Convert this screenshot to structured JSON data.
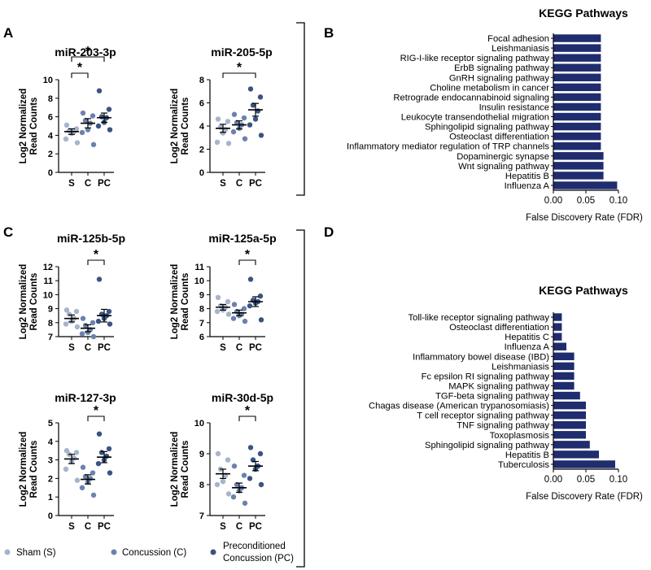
{
  "panel_labels": {
    "A": "A",
    "B": "B",
    "C": "C",
    "D": "D"
  },
  "colors": {
    "sham": "#a6b4cc",
    "concussion": "#6b82ad",
    "pc": "#3a5382",
    "bar": "#1f2d6e",
    "axis": "#000000"
  },
  "legend": {
    "items": [
      {
        "label": "Sham (S)",
        "color": "#a6b4cc"
      },
      {
        "label": "Concussion (C)",
        "color": "#6b82ad"
      },
      {
        "label": "Preconditioned",
        "label2": "Concussion (PC)",
        "color": "#3a5382"
      }
    ]
  },
  "chart_data": [
    {
      "type": "scatter",
      "id": "mir203",
      "title": "miR-203-3p",
      "ylabel": [
        "Log2 Normalized",
        "Read Counts"
      ],
      "categories": [
        "S",
        "C",
        "PC"
      ],
      "ylim": [
        0,
        10
      ],
      "yticks": [
        0,
        2,
        4,
        6,
        8,
        10
      ],
      "groups": [
        {
          "name": "S",
          "mean": 4.4,
          "sem": 0.3,
          "points": [
            5.1,
            4.7,
            4.5,
            4.4,
            4.2,
            3.6,
            3.2
          ]
        },
        {
          "name": "C",
          "mean": 5.3,
          "sem": 0.5,
          "points": [
            6.4,
            6.1,
            5.6,
            5.3,
            4.6,
            4.3,
            3.0
          ]
        },
        {
          "name": "PC",
          "mean": 5.9,
          "sem": 0.5,
          "points": [
            8.8,
            6.8,
            6.0,
            5.9,
            5.4,
            5.0,
            4.6
          ]
        }
      ],
      "significance": [
        {
          "from": "S",
          "to": "C",
          "label": "*",
          "level": 1
        },
        {
          "from": "S",
          "to": "PC",
          "label": "*",
          "level": 2
        }
      ]
    },
    {
      "type": "scatter",
      "id": "mir205",
      "title": "miR-205-5p",
      "ylabel": [
        "Log2 Normalized",
        "Read Counts"
      ],
      "categories": [
        "S",
        "C",
        "PC"
      ],
      "ylim": [
        0,
        8
      ],
      "yticks": [
        0,
        2,
        4,
        6,
        8
      ],
      "groups": [
        {
          "name": "S",
          "mean": 3.8,
          "sem": 0.35,
          "points": [
            4.6,
            4.4,
            3.9,
            3.7,
            3.4,
            2.6,
            2.5
          ]
        },
        {
          "name": "C",
          "mean": 4.1,
          "sem": 0.35,
          "points": [
            5.0,
            4.7,
            4.3,
            4.1,
            3.8,
            3.5,
            2.9
          ]
        },
        {
          "name": "PC",
          "mean": 5.4,
          "sem": 0.55,
          "points": [
            7.2,
            6.5,
            5.8,
            5.3,
            4.6,
            4.1,
            3.2
          ]
        }
      ],
      "significance": [
        {
          "from": "S",
          "to": "PC",
          "label": "*",
          "level": 1
        }
      ]
    },
    {
      "type": "scatter",
      "id": "mir125b",
      "title": "miR-125b-5p",
      "ylabel": [
        "Log2 Normalized",
        "Read Counts"
      ],
      "categories": [
        "S",
        "C",
        "PC"
      ],
      "ylim": [
        7,
        12
      ],
      "yticks": [
        7,
        8,
        9,
        10,
        11,
        12
      ],
      "groups": [
        {
          "name": "S",
          "mean": 8.3,
          "sem": 0.25,
          "points": [
            8.9,
            8.8,
            8.6,
            8.3,
            8.1,
            7.9,
            7.7
          ]
        },
        {
          "name": "C",
          "mean": 7.6,
          "sem": 0.25,
          "points": [
            8.3,
            8.0,
            7.8,
            7.5,
            7.3,
            7.2,
            7.0
          ]
        },
        {
          "name": "PC",
          "mean": 8.5,
          "sem": 0.45,
          "points": [
            11.1,
            8.8,
            8.6,
            8.5,
            8.3,
            8.1,
            7.9
          ]
        }
      ],
      "significance": [
        {
          "from": "C",
          "to": "PC",
          "label": "*",
          "level": 1
        }
      ]
    },
    {
      "type": "scatter",
      "id": "mir125a",
      "title": "miR-125a-5p",
      "ylabel": [
        "Log2 Normalized",
        "Read Counts"
      ],
      "categories": [
        "S",
        "C",
        "PC"
      ],
      "ylim": [
        6,
        11
      ],
      "yticks": [
        6,
        7,
        8,
        9,
        10,
        11
      ],
      "groups": [
        {
          "name": "S",
          "mean": 8.1,
          "sem": 0.2,
          "points": [
            8.8,
            8.5,
            8.2,
            8.1,
            7.9,
            7.8,
            7.6
          ]
        },
        {
          "name": "C",
          "mean": 7.7,
          "sem": 0.2,
          "points": [
            8.3,
            8.0,
            7.8,
            7.6,
            7.5,
            7.3,
            7.1
          ]
        },
        {
          "name": "PC",
          "mean": 8.5,
          "sem": 0.35,
          "points": [
            10.1,
            8.9,
            8.6,
            8.5,
            8.4,
            8.2,
            7.2
          ]
        }
      ],
      "significance": [
        {
          "from": "C",
          "to": "PC",
          "label": "*",
          "level": 1
        }
      ]
    },
    {
      "type": "scatter",
      "id": "mir127",
      "title": "miR-127-3p",
      "ylabel": [
        "Log2 Normalized",
        "Read Counts"
      ],
      "categories": [
        "S",
        "C",
        "PC"
      ],
      "ylim": [
        0,
        5
      ],
      "yticks": [
        0,
        1,
        2,
        3,
        4,
        5
      ],
      "groups": [
        {
          "name": "S",
          "mean": 3.05,
          "sem": 0.25,
          "points": [
            3.5,
            3.4,
            3.3,
            3.1,
            2.9,
            2.5,
            1.9
          ]
        },
        {
          "name": "C",
          "mean": 1.95,
          "sem": 0.25,
          "points": [
            2.6,
            2.3,
            2.1,
            2.0,
            1.8,
            1.5,
            1.1
          ]
        },
        {
          "name": "PC",
          "mean": 3.15,
          "sem": 0.3,
          "points": [
            4.4,
            3.6,
            3.4,
            3.2,
            3.0,
            2.8,
            2.3
          ]
        }
      ],
      "significance": [
        {
          "from": "C",
          "to": "PC",
          "label": "*",
          "level": 1
        }
      ]
    },
    {
      "type": "scatter",
      "id": "mir30d",
      "title": "miR-30d-5p",
      "ylabel": [
        "Log2 Normalized",
        "Read Counts"
      ],
      "categories": [
        "S",
        "C",
        "PC"
      ],
      "ylim": [
        7,
        10
      ],
      "yticks": [
        7,
        8,
        9,
        10
      ],
      "groups": [
        {
          "name": "S",
          "mean": 8.35,
          "sem": 0.15,
          "points": [
            9.0,
            8.8,
            8.5,
            8.3,
            8.1,
            8.0,
            7.7
          ]
        },
        {
          "name": "C",
          "mean": 7.9,
          "sem": 0.15,
          "points": [
            8.6,
            8.3,
            8.0,
            7.9,
            7.8,
            7.6,
            7.4
          ]
        },
        {
          "name": "PC",
          "mean": 8.6,
          "sem": 0.15,
          "points": [
            9.2,
            9.0,
            8.8,
            8.6,
            8.5,
            8.2,
            8.0
          ]
        }
      ],
      "significance": [
        {
          "from": "C",
          "to": "PC",
          "label": "*",
          "level": 1
        }
      ]
    },
    {
      "type": "bar",
      "orientation": "horizontal",
      "id": "keggB",
      "title": "KEGG Pathways",
      "xlabel": "False Discovery Rate (FDR)",
      "xlim": [
        0,
        0.1
      ],
      "xticks": [
        "0.00",
        "0.05",
        "0.10"
      ],
      "categories": [
        "Focal adhesion",
        "Leishmaniasis",
        "RIG-I-like receptor signaling pathway",
        "ErbB signaling pathway",
        "GnRH signaling pathway",
        "Choline metabolism in cancer",
        "Retrograde endocannabinoid signaling",
        "Insulin resistance",
        "Leukocyte transendothelial migration",
        "Sphingolipid signaling pathway",
        "Osteoclast differentiation",
        "Inflammatory mediator regulation of TRP channels",
        "Dopaminergic synapse",
        "Wnt signaling pathway",
        "Hepatitis B",
        "Influenza A"
      ],
      "values": [
        0.073,
        0.073,
        0.073,
        0.073,
        0.073,
        0.073,
        0.073,
        0.073,
        0.073,
        0.073,
        0.073,
        0.073,
        0.077,
        0.077,
        0.077,
        0.098
      ]
    },
    {
      "type": "bar",
      "orientation": "horizontal",
      "id": "keggD",
      "title": "KEGG Pathways",
      "xlabel": "False Discovery Rate (FDR)",
      "xlim": [
        0,
        0.1
      ],
      "xticks": [
        "0.00",
        "0.05",
        "0.10"
      ],
      "categories": [
        "Toll-like receptor signaling pathway",
        "Osteoclast differentiation",
        "Hepatitis C",
        "Influenza A",
        "Inflammatory bowel disease (IBD)",
        "Leishmaniasis",
        "Fc epsilon RI signaling pathway",
        "MAPK signaling pathway",
        "TGF-beta signaling pathway",
        "Chagas disease (American trypanosomiasis)",
        "T cell receptor signaling pathway",
        "TNF signaling pathway",
        "Toxoplasmosis",
        "Sphingolipid signaling pathway",
        "Hepatitis B",
        "Tuberculosis"
      ],
      "values": [
        0.013,
        0.013,
        0.013,
        0.02,
        0.032,
        0.032,
        0.032,
        0.032,
        0.041,
        0.05,
        0.05,
        0.05,
        0.05,
        0.056,
        0.07,
        0.095
      ]
    }
  ]
}
